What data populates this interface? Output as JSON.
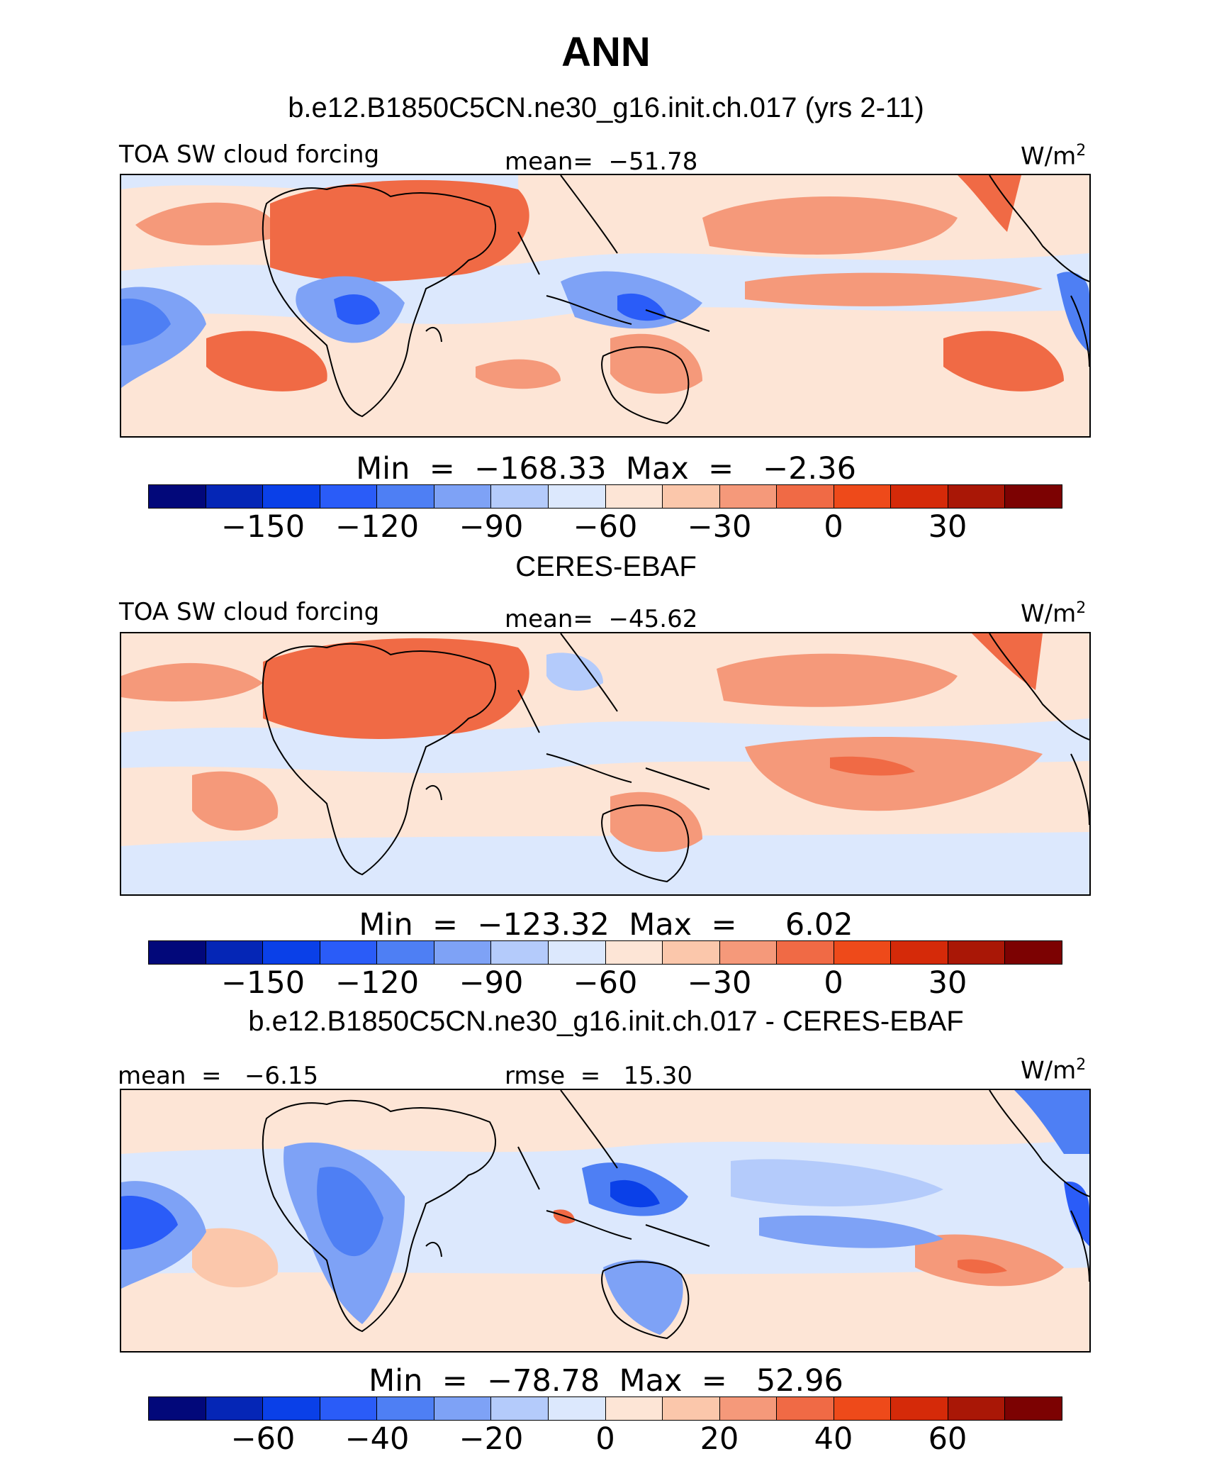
{
  "title": "ANN",
  "colorbar_colors": [
    "#02087a",
    "#0526b6",
    "#0a40e8",
    "#2a5cf8",
    "#4e7ff4",
    "#7ea2f6",
    "#b4cbfb",
    "#dce8fd",
    "#fde5d6",
    "#fbc7ab",
    "#f5997a",
    "#f06a45",
    "#ee4a1a",
    "#d52a09",
    "#a91706",
    "#7c0202"
  ],
  "panels": [
    {
      "header": "b.e12.B1850C5CN.ne30_g16.init.ch.017 (yrs 2-11)",
      "left_label": "TOA SW cloud forcing",
      "center_label": "mean=  −51.78",
      "units_label": "W/m",
      "units_sup": "2",
      "minmax": "Min  =  −168.33  Max  =   −2.36",
      "ticks": [
        "−150",
        "−120",
        "−90",
        "−60",
        "−30",
        "0",
        "30"
      ]
    },
    {
      "header": "CERES-EBAF",
      "left_label": "TOA SW cloud forcing",
      "center_label": "mean=  −45.62",
      "units_label": "W/m",
      "units_sup": "2",
      "minmax": "Min  =  −123.32  Max  =     6.02",
      "ticks": [
        "−150",
        "−120",
        "−90",
        "−60",
        "−30",
        "0",
        "30"
      ]
    },
    {
      "header": "b.e12.B1850C5CN.ne30_g16.init.ch.017 - CERES-EBAF",
      "left_label": "mean  =   −6.15",
      "center_label": "rmse  =   15.30",
      "units_label": "W/m",
      "units_sup": "2",
      "minmax": "Min  =  −78.78  Max  =   52.96",
      "ticks": [
        "−60",
        "−40",
        "−20",
        "0",
        "20",
        "40",
        "60"
      ]
    }
  ]
}
